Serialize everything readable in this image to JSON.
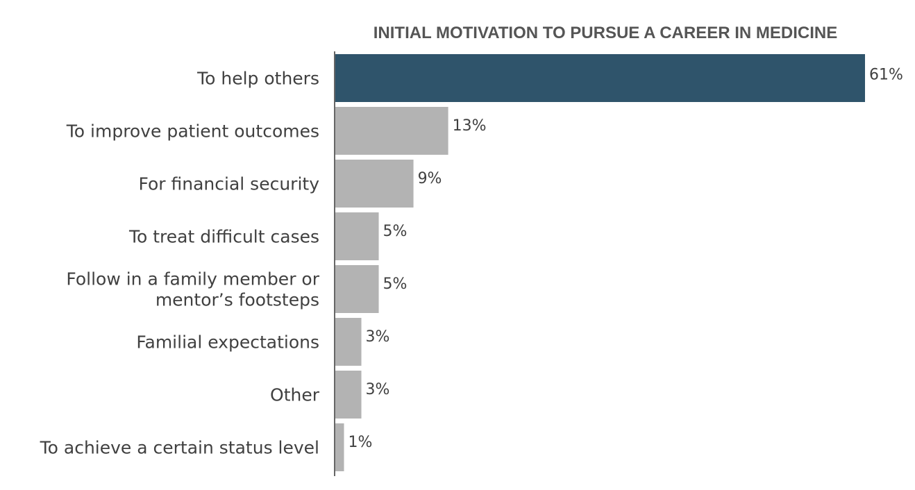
{
  "chart_data": {
    "type": "bar",
    "orientation": "horizontal",
    "title": "INITIAL MOTIVATION TO PURSUE A CAREER IN MEDICINE",
    "categories": [
      "To help others",
      "To improve patient outcomes",
      "For financial security",
      "To treat difficult cases",
      "Follow in a family member or mentor’s footsteps",
      "Familial expectations",
      "Other",
      "To achieve a certain status level"
    ],
    "category_lines": [
      [
        "To help others"
      ],
      [
        "To improve patient outcomes"
      ],
      [
        "For financial security"
      ],
      [
        "To treat difficult cases"
      ],
      [
        "Follow in a family member or",
        "mentor’s footsteps"
      ],
      [
        "Familial expectations"
      ],
      [
        "Other"
      ],
      [
        "To achieve a certain status level"
      ]
    ],
    "values": [
      61,
      13,
      9,
      5,
      5,
      3,
      3,
      1
    ],
    "value_labels": [
      "61%",
      "13%",
      "9%",
      "5%",
      "5%",
      "3%",
      "3%",
      "1%"
    ],
    "unit": "%",
    "xlim": [
      0,
      61
    ],
    "grid": false,
    "legend": "none",
    "colors": {
      "highlight": "#2f546b",
      "default": "#b3b3b3",
      "axis": "#333333"
    },
    "highlight_index": 0
  }
}
